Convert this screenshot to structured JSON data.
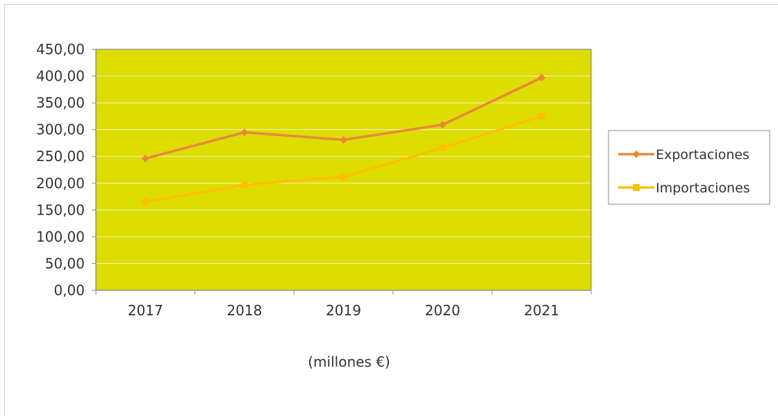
{
  "chart_data": {
    "type": "line",
    "categories": [
      "2017",
      "2018",
      "2019",
      "2020",
      "2021"
    ],
    "series": [
      {
        "name": "Exportaciones",
        "values": [
          246,
          295,
          281,
          309,
          397
        ],
        "color": "#E8883A",
        "marker": "diamond"
      },
      {
        "name": "Importaciones",
        "values": [
          165,
          197,
          212,
          266,
          325
        ],
        "color": "#FFC000",
        "marker": "square"
      }
    ],
    "title": "",
    "xlabel": "(millones €)",
    "ylabel": "",
    "ylim": [
      0,
      450
    ],
    "yticks": [
      0,
      50,
      100,
      150,
      200,
      250,
      300,
      350,
      400,
      450
    ],
    "ytick_labels": [
      "0,00",
      "50,00",
      "100,00",
      "150,00",
      "200,00",
      "250,00",
      "300,00",
      "350,00",
      "400,00",
      "450,00"
    ],
    "grid": true,
    "plot_background": "#DDDD00",
    "legend_position": "right"
  }
}
